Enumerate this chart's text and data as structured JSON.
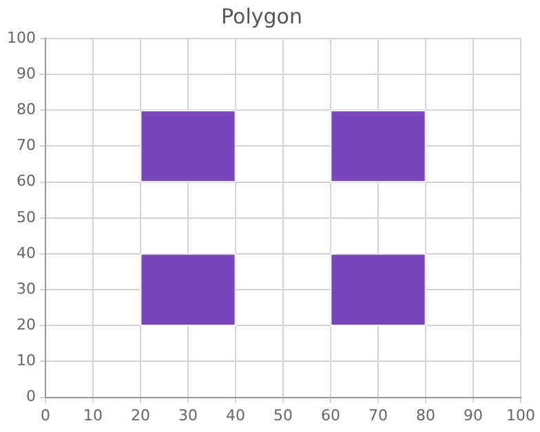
{
  "chart_data": {
    "type": "bar",
    "title": "Polygon",
    "xlim": [
      0,
      100
    ],
    "ylim": [
      0,
      100
    ],
    "xticks": [
      0,
      10,
      20,
      30,
      40,
      50,
      60,
      70,
      80,
      90,
      100
    ],
    "yticks": [
      0,
      10,
      20,
      30,
      40,
      50,
      60,
      70,
      80,
      90,
      100
    ],
    "grid": true,
    "legend": false,
    "x": [
      30,
      70
    ],
    "series": [
      {
        "color": "#7847bb",
        "base": [
          60,
          60
        ],
        "values": [
          20,
          20
        ]
      },
      {
        "color": "#7847bb",
        "base": [
          20,
          20
        ],
        "values": [
          20,
          20
        ]
      }
    ]
  }
}
